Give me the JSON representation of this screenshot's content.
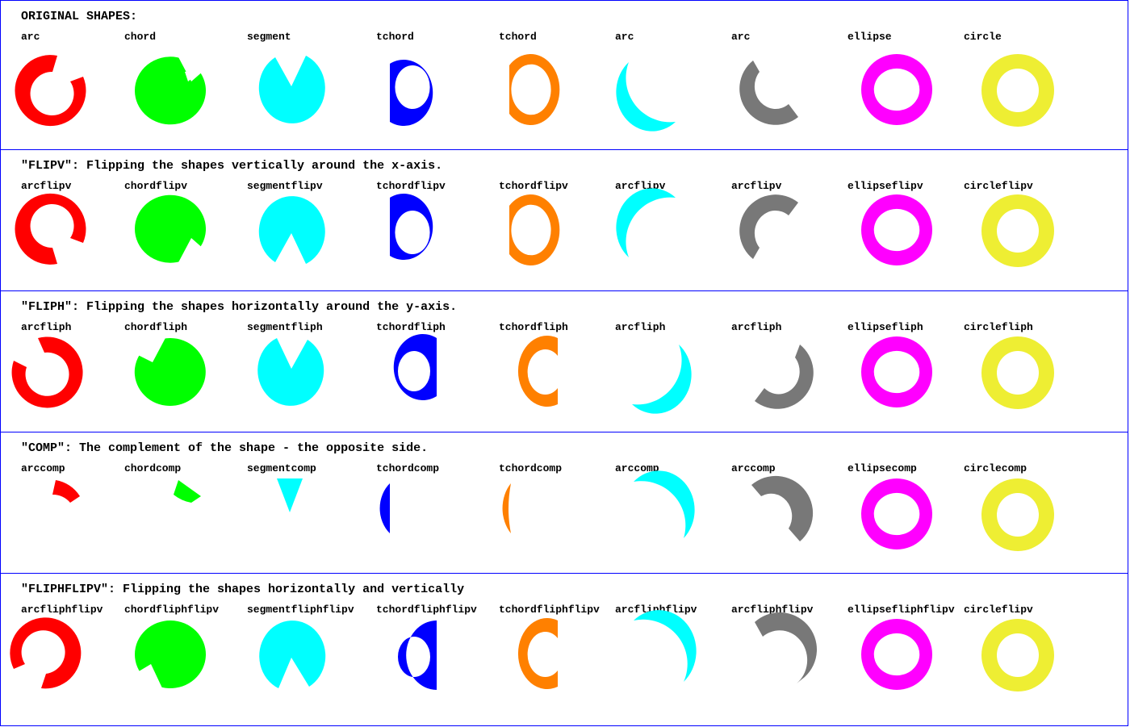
{
  "colors": {
    "red": "#ff0000",
    "green": "#00ff00",
    "cyan": "#00ffff",
    "blue": "#0000ff",
    "orange": "#ff8000",
    "gray": "#787878",
    "magenta": "#ff00ff",
    "yellow": "#eeee33",
    "border": "#0000ff"
  },
  "rows": [
    {
      "title": "ORIGINAL SHAPES:",
      "labels": [
        "arc",
        "chord",
        "segment",
        "tchord",
        "tchord",
        "arc",
        "arc",
        "ellipse",
        "circle"
      ]
    },
    {
      "title": "\"FLIPV\": Flipping the shapes vertically around the x-axis.",
      "labels": [
        "arcflipv",
        "chordflipv",
        "segmentflipv",
        "tchordflipv",
        "tchordflipv",
        "arcflipv",
        "arcflipv",
        "ellipseflipv",
        "circleflipv"
      ]
    },
    {
      "title": "\"FLIPH\": Flipping the shapes horizontally around the y-axis.",
      "labels": [
        "arcfliph",
        "chordfliph",
        "segmentfliph",
        "tchordfliph",
        "tchordfliph",
        "arcfliph",
        "arcfliph",
        "ellipsefliph",
        "circlefliph"
      ]
    },
    {
      "title": "\"COMP\": The complement of the shape - the opposite side.",
      "labels": [
        "arccomp",
        "chordcomp",
        "segmentcomp",
        "tchordcomp",
        "tchordcomp",
        "arccomp",
        "arccomp",
        "ellipsecomp",
        "circlecomp"
      ]
    },
    {
      "title": "\"FLIPHFLIPV\": Flipping the shapes horizontally and vertically",
      "labels": [
        "arcfliphflipv",
        "chordfliphflipv",
        "segmentfliphflipv",
        "tchordfliphflipv",
        "tchordfliphflipv",
        "arcfliphflipv",
        "arcfliphflipv",
        "ellipsefliphflipv",
        "circleflipv"
      ]
    }
  ]
}
